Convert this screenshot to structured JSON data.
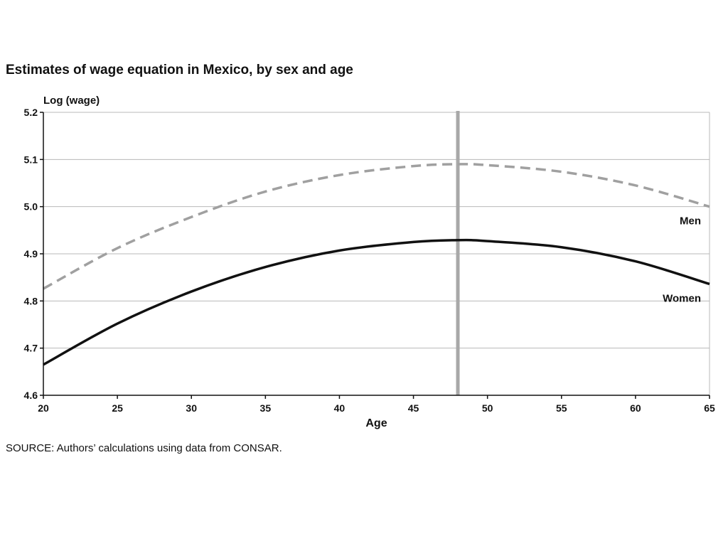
{
  "title": "Estimates of wage equation in Mexico, by sex and age",
  "source": "SOURCE: Authors’ calculations using data from CONSAR.",
  "chart_data": {
    "type": "line",
    "title": "Estimates of wage equation in Mexico, by sex and age",
    "xlabel": "Age",
    "ylabel": "Log (wage)",
    "xlim": [
      20,
      65
    ],
    "ylim": [
      4.6,
      5.2
    ],
    "xticks": [
      20,
      25,
      30,
      35,
      40,
      45,
      50,
      55,
      60,
      65
    ],
    "yticks": [
      4.6,
      4.7,
      4.8,
      4.9,
      5.0,
      5.1,
      5.2
    ],
    "grid": true,
    "reference_line": {
      "x": 48
    },
    "x": [
      20,
      25,
      30,
      35,
      40,
      45,
      48,
      50,
      55,
      60,
      65
    ],
    "series": [
      {
        "name": "Men",
        "style": "dashed",
        "color": "#a0a0a0",
        "values": [
          4.826,
          4.912,
          4.978,
          5.032,
          5.067,
          5.086,
          5.09,
          5.088,
          5.074,
          5.045,
          5.0
        ]
      },
      {
        "name": "Women",
        "style": "solid",
        "color": "#111111",
        "values": [
          4.665,
          4.752,
          4.82,
          4.872,
          4.907,
          4.925,
          4.929,
          4.927,
          4.914,
          4.884,
          4.836
        ]
      }
    ]
  }
}
